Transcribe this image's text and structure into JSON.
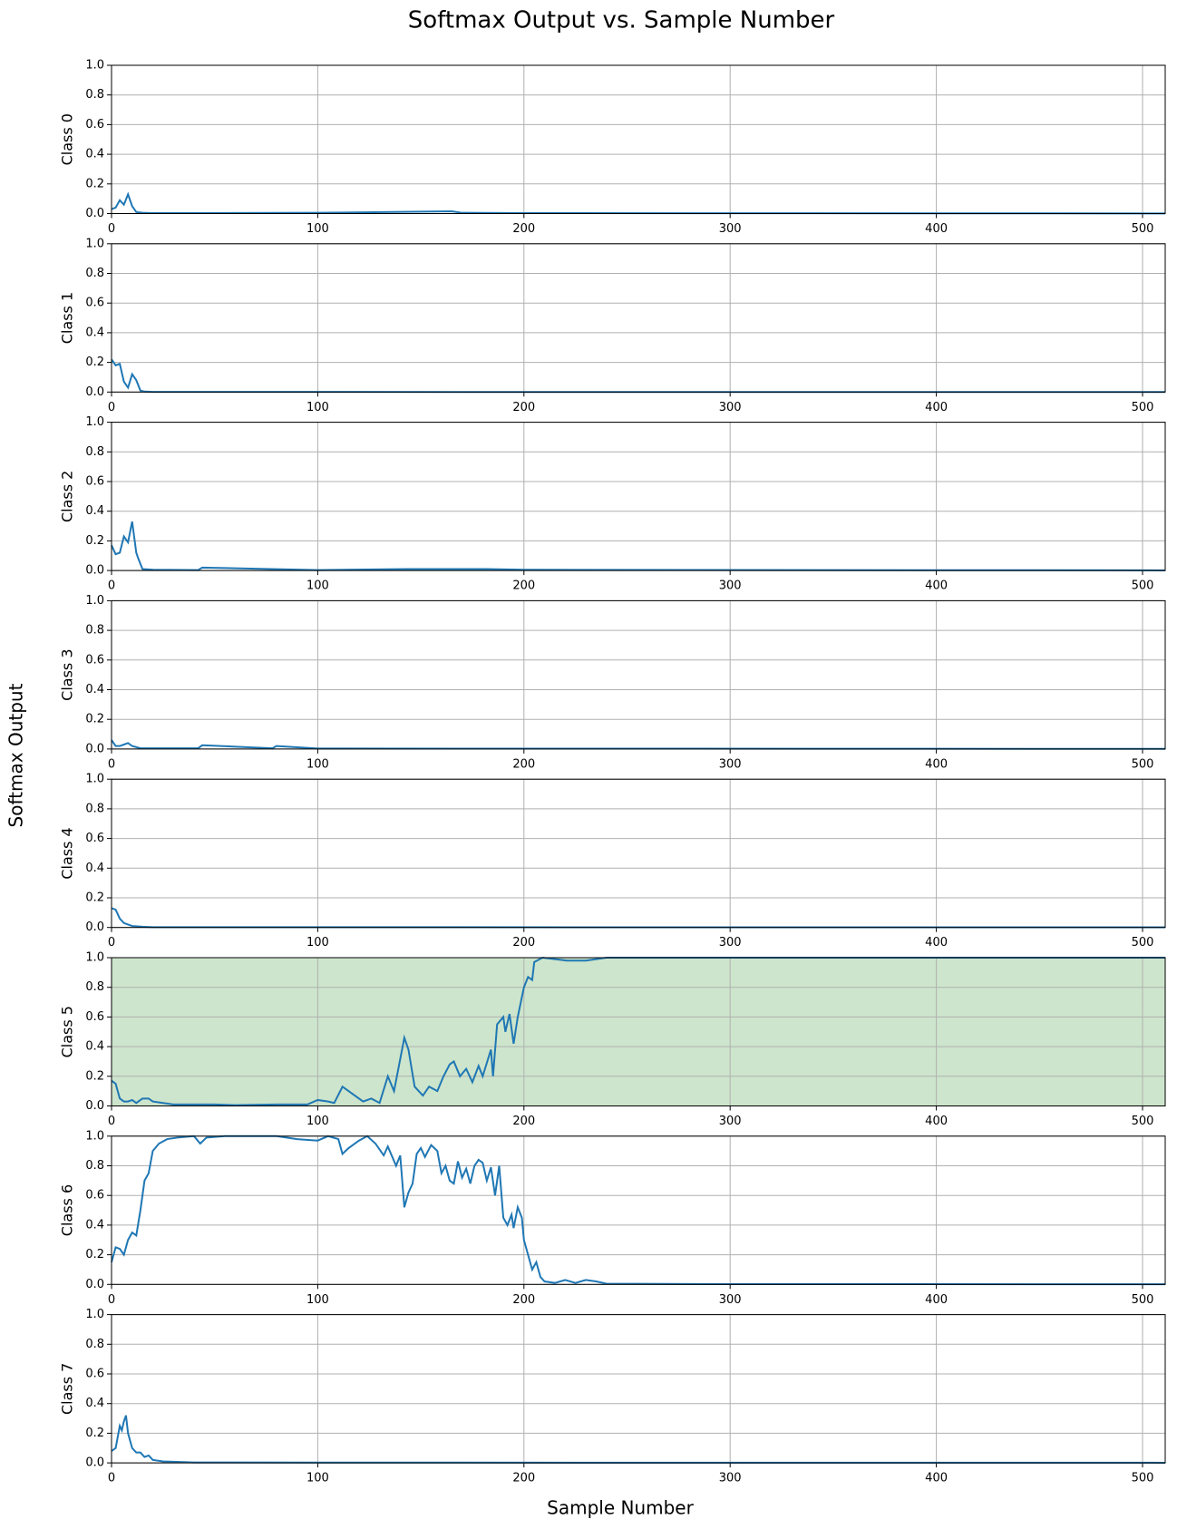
{
  "title": "Softmax Output vs. Sample Number",
  "xlabel": "Sample Number",
  "ylabel": "Softmax Output",
  "chart_data": [
    {
      "type": "line",
      "ylabel": "Class 0",
      "color": "#1f77b4",
      "grid": true,
      "xlim": [
        0,
        511
      ],
      "ylim": [
        0,
        1
      ],
      "xticks": [
        0,
        100,
        200,
        300,
        400,
        500
      ],
      "yticks": [
        {
          "value": 0,
          "label": "0.0"
        },
        {
          "value": 0.2,
          "label": "0.2"
        },
        {
          "value": 0.4,
          "label": "0.4"
        },
        {
          "value": 0.6,
          "label": "0.6"
        },
        {
          "value": 0.8,
          "label": "0.8"
        },
        {
          "value": 1,
          "label": "1.0"
        }
      ],
      "x": [
        0,
        2,
        4,
        6,
        8,
        10,
        12,
        15,
        20,
        100,
        165,
        170,
        200,
        511
      ],
      "values": [
        0.03,
        0.04,
        0.09,
        0.06,
        0.13,
        0.05,
        0.01,
        0.005,
        0.003,
        0.005,
        0.015,
        0.005,
        0.003,
        0.001
      ]
    },
    {
      "type": "line",
      "ylabel": "Class 1",
      "color": "#1f77b4",
      "grid": true,
      "xlim": [
        0,
        511
      ],
      "ylim": [
        0,
        1
      ],
      "xticks": [
        0,
        100,
        200,
        300,
        400,
        500
      ],
      "yticks": [
        {
          "value": 0,
          "label": "0.0"
        },
        {
          "value": 0.2,
          "label": "0.2"
        },
        {
          "value": 0.4,
          "label": "0.4"
        },
        {
          "value": 0.6,
          "label": "0.6"
        },
        {
          "value": 0.8,
          "label": "0.8"
        },
        {
          "value": 1,
          "label": "1.0"
        }
      ],
      "x": [
        0,
        2,
        4,
        6,
        8,
        10,
        12,
        14,
        16,
        20,
        511
      ],
      "values": [
        0.22,
        0.18,
        0.19,
        0.07,
        0.03,
        0.12,
        0.08,
        0.01,
        0.003,
        0.001,
        0
      ]
    },
    {
      "type": "line",
      "ylabel": "Class 2",
      "color": "#1f77b4",
      "grid": true,
      "xlim": [
        0,
        511
      ],
      "ylim": [
        0,
        1
      ],
      "xticks": [
        0,
        100,
        200,
        300,
        400,
        500
      ],
      "yticks": [
        {
          "value": 0,
          "label": "0.0"
        },
        {
          "value": 0.2,
          "label": "0.2"
        },
        {
          "value": 0.4,
          "label": "0.4"
        },
        {
          "value": 0.6,
          "label": "0.6"
        },
        {
          "value": 0.8,
          "label": "0.8"
        },
        {
          "value": 1,
          "label": "1.0"
        }
      ],
      "x": [
        0,
        2,
        4,
        6,
        8,
        9,
        10,
        12,
        13,
        15,
        20,
        42,
        44,
        100,
        143,
        182,
        200,
        511
      ],
      "values": [
        0.17,
        0.11,
        0.12,
        0.23,
        0.19,
        0.26,
        0.33,
        0.12,
        0.08,
        0.01,
        0.005,
        0.003,
        0.02,
        0.003,
        0.01,
        0.01,
        0.005,
        0.001
      ]
    },
    {
      "type": "line",
      "ylabel": "Class 3",
      "color": "#1f77b4",
      "grid": true,
      "xlim": [
        0,
        511
      ],
      "ylim": [
        0,
        1
      ],
      "xticks": [
        0,
        100,
        200,
        300,
        400,
        500
      ],
      "yticks": [
        {
          "value": 0,
          "label": "0.0"
        },
        {
          "value": 0.2,
          "label": "0.2"
        },
        {
          "value": 0.4,
          "label": "0.4"
        },
        {
          "value": 0.6,
          "label": "0.6"
        },
        {
          "value": 0.8,
          "label": "0.8"
        },
        {
          "value": 1,
          "label": "1.0"
        }
      ],
      "x": [
        0,
        2,
        4,
        6,
        8,
        10,
        14,
        42,
        44,
        78,
        80,
        100,
        511
      ],
      "values": [
        0.06,
        0.02,
        0.02,
        0.03,
        0.04,
        0.02,
        0.005,
        0.005,
        0.025,
        0.005,
        0.02,
        0.003,
        0.001
      ]
    },
    {
      "type": "line",
      "ylabel": "Class 4",
      "color": "#1f77b4",
      "grid": true,
      "xlim": [
        0,
        511
      ],
      "ylim": [
        0,
        1
      ],
      "xticks": [
        0,
        100,
        200,
        300,
        400,
        500
      ],
      "yticks": [
        {
          "value": 0,
          "label": "0.0"
        },
        {
          "value": 0.2,
          "label": "0.2"
        },
        {
          "value": 0.4,
          "label": "0.4"
        },
        {
          "value": 0.6,
          "label": "0.6"
        },
        {
          "value": 0.8,
          "label": "0.8"
        },
        {
          "value": 1,
          "label": "1.0"
        }
      ],
      "x": [
        0,
        2,
        4,
        6,
        8,
        10,
        15,
        20,
        511
      ],
      "values": [
        0.13,
        0.12,
        0.06,
        0.03,
        0.02,
        0.01,
        0.005,
        0.002,
        0.001
      ]
    },
    {
      "type": "line",
      "ylabel": "Class 5",
      "color": "#1f77b4",
      "facecolor": "#cde5cc",
      "grid": true,
      "xlim": [
        0,
        511
      ],
      "ylim": [
        0,
        1
      ],
      "xticks": [
        0,
        100,
        200,
        300,
        400,
        500
      ],
      "yticks": [
        {
          "value": 0,
          "label": "0.0"
        },
        {
          "value": 0.2,
          "label": "0.2"
        },
        {
          "value": 0.4,
          "label": "0.4"
        },
        {
          "value": 0.6,
          "label": "0.6"
        },
        {
          "value": 0.8,
          "label": "0.8"
        },
        {
          "value": 1,
          "label": "1.0"
        }
      ],
      "x": [
        0,
        2,
        4,
        6,
        8,
        10,
        12,
        15,
        18,
        20,
        25,
        30,
        50,
        60,
        80,
        95,
        100,
        105,
        108,
        112,
        116,
        122,
        126,
        130,
        134,
        137,
        142,
        144,
        147,
        151,
        154,
        158,
        161,
        164,
        166,
        169,
        172,
        175,
        178,
        180,
        184,
        185,
        187,
        190,
        191,
        193,
        195,
        197,
        200,
        202,
        204,
        205,
        209,
        221,
        230,
        240,
        300,
        511
      ],
      "values": [
        0.17,
        0.15,
        0.05,
        0.03,
        0.03,
        0.04,
        0.02,
        0.05,
        0.05,
        0.03,
        0.02,
        0.01,
        0.01,
        0.005,
        0.01,
        0.01,
        0.04,
        0.03,
        0.02,
        0.13,
        0.09,
        0.03,
        0.05,
        0.02,
        0.2,
        0.1,
        0.46,
        0.38,
        0.13,
        0.07,
        0.13,
        0.1,
        0.2,
        0.28,
        0.3,
        0.2,
        0.25,
        0.16,
        0.27,
        0.2,
        0.38,
        0.2,
        0.55,
        0.6,
        0.5,
        0.62,
        0.42,
        0.6,
        0.8,
        0.87,
        0.85,
        0.97,
        1.0,
        0.98,
        0.98,
        1.0,
        1.0,
        1.0
      ]
    },
    {
      "type": "line",
      "ylabel": "Class 6",
      "color": "#1f77b4",
      "grid": true,
      "xlim": [
        0,
        511
      ],
      "ylim": [
        0,
        1
      ],
      "xticks": [
        0,
        100,
        200,
        300,
        400,
        500
      ],
      "yticks": [
        {
          "value": 0,
          "label": "0.0"
        },
        {
          "value": 0.2,
          "label": "0.2"
        },
        {
          "value": 0.4,
          "label": "0.4"
        },
        {
          "value": 0.6,
          "label": "0.6"
        },
        {
          "value": 0.8,
          "label": "0.8"
        },
        {
          "value": 1,
          "label": "1.0"
        }
      ],
      "x": [
        0,
        2,
        4,
        6,
        8,
        10,
        12,
        14,
        16,
        18,
        20,
        23,
        27,
        32,
        40,
        43,
        46,
        55,
        80,
        90,
        100,
        105,
        110,
        112,
        115,
        120,
        124,
        128,
        132,
        134,
        138,
        140,
        142,
        144,
        146,
        148,
        150,
        152,
        155,
        158,
        160,
        162,
        164,
        166,
        168,
        170,
        172,
        174,
        176,
        178,
        180,
        182,
        184,
        186,
        188,
        190,
        192,
        194,
        195,
        197,
        199,
        200,
        202,
        204,
        206,
        208,
        210,
        215,
        220,
        225,
        230,
        235,
        240,
        300,
        511
      ],
      "values": [
        0.15,
        0.25,
        0.24,
        0.2,
        0.3,
        0.35,
        0.33,
        0.5,
        0.7,
        0.75,
        0.9,
        0.95,
        0.98,
        0.99,
        1.0,
        0.95,
        0.99,
        1.0,
        1.0,
        0.98,
        0.97,
        1.0,
        0.98,
        0.88,
        0.92,
        0.97,
        1.0,
        0.95,
        0.87,
        0.93,
        0.8,
        0.87,
        0.52,
        0.62,
        0.68,
        0.88,
        0.92,
        0.86,
        0.94,
        0.9,
        0.75,
        0.8,
        0.7,
        0.68,
        0.83,
        0.72,
        0.78,
        0.68,
        0.8,
        0.84,
        0.82,
        0.7,
        0.79,
        0.6,
        0.8,
        0.45,
        0.4,
        0.47,
        0.38,
        0.52,
        0.45,
        0.3,
        0.2,
        0.1,
        0.15,
        0.05,
        0.02,
        0.01,
        0.03,
        0.01,
        0.03,
        0.02,
        0.005,
        0.002,
        0.001
      ]
    },
    {
      "type": "line",
      "ylabel": "Class 7",
      "color": "#1f77b4",
      "grid": true,
      "xlim": [
        0,
        511
      ],
      "ylim": [
        0,
        1
      ],
      "xticks": [
        0,
        100,
        200,
        300,
        400,
        500
      ],
      "yticks": [
        {
          "value": 0,
          "label": "0.0"
        },
        {
          "value": 0.2,
          "label": "0.2"
        },
        {
          "value": 0.4,
          "label": "0.4"
        },
        {
          "value": 0.6,
          "label": "0.6"
        },
        {
          "value": 0.8,
          "label": "0.8"
        },
        {
          "value": 1,
          "label": "1.0"
        }
      ],
      "x": [
        0,
        2,
        4,
        5,
        6,
        7,
        8,
        10,
        12,
        14,
        16,
        18,
        20,
        25,
        40,
        100,
        511
      ],
      "values": [
        0.08,
        0.1,
        0.25,
        0.22,
        0.28,
        0.32,
        0.2,
        0.1,
        0.07,
        0.07,
        0.04,
        0.05,
        0.02,
        0.01,
        0.003,
        0.002,
        0.001
      ]
    }
  ]
}
